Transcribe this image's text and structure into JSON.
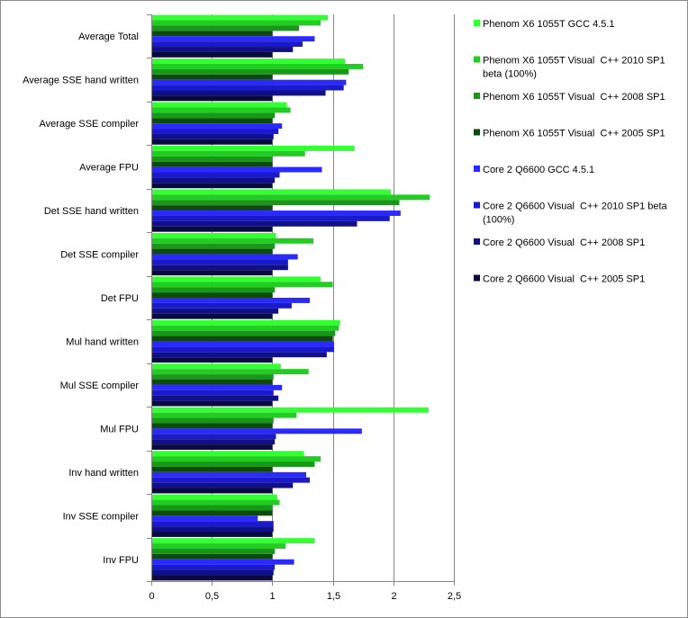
{
  "chart_data": {
    "type": "bar",
    "orientation": "horizontal",
    "title": "",
    "xlabel": "",
    "ylabel": "",
    "xlim": [
      0,
      2.5
    ],
    "xticks": [
      "0",
      "0,5",
      "1",
      "1,5",
      "2",
      "2,5"
    ],
    "grid": "vertical major gridlines",
    "legend_position": "right",
    "categories": [
      "Average Total",
      "Average SSE hand  written",
      "Average SSE compiler",
      "Average FPU",
      "Det SSE hand  written",
      "Det SSE compiler",
      "Det FPU",
      "Mul hand  written",
      "Mul SSE compiler",
      "Mul FPU",
      "Inv hand  written",
      "Inv SSE compiler",
      "Inv FPU"
    ],
    "series": [
      {
        "name": "Phenom X6 1055T GCC 4.5.1",
        "color": "#33ff33",
        "values": [
          1.46,
          1.6,
          1.12,
          1.68,
          1.98,
          1.03,
          1.4,
          1.56,
          1.07,
          2.29,
          1.26,
          1.04,
          1.35
        ]
      },
      {
        "name": "Phenom X6 1055T Visual  C++ 2010 SP1 beta (100%)",
        "color": "#22cc22",
        "values": [
          1.4,
          1.75,
          1.15,
          1.27,
          2.3,
          1.34,
          1.5,
          1.55,
          1.3,
          1.2,
          1.4,
          1.06,
          1.11
        ]
      },
      {
        "name": "Phenom X6 1055T Visual  C++ 2008 SP1",
        "color": "#169916",
        "values": [
          1.22,
          1.63,
          1.02,
          1.0,
          2.05,
          1.02,
          1.02,
          1.52,
          1.01,
          1.01,
          1.35,
          1.0,
          1.02
        ]
      },
      {
        "name": "Phenom X6 1055T Visual  C++ 2005 SP1",
        "color": "#0d4a0d",
        "values": [
          1.0,
          1.0,
          1.0,
          1.0,
          1.0,
          1.0,
          1.0,
          1.5,
          1.0,
          1.0,
          1.0,
          1.0,
          1.0
        ]
      },
      {
        "name": "Core 2 Q6600 GCC 4.5.1",
        "color": "#2a2aff",
        "values": [
          1.35,
          1.61,
          1.08,
          1.41,
          2.06,
          1.21,
          1.31,
          1.51,
          1.08,
          1.74,
          1.28,
          0.88,
          1.18
        ]
      },
      {
        "name": "Core 2 Q6600 Visual  C++ 2010 SP1 beta (100%)",
        "color": "#1a1acc",
        "values": [
          1.25,
          1.59,
          1.05,
          1.06,
          1.97,
          1.13,
          1.16,
          1.51,
          1.01,
          1.03,
          1.31,
          1.01,
          1.02
        ]
      },
      {
        "name": "Core 2 Q6600 Visual  C++ 2008 SP1",
        "color": "#10108a",
        "values": [
          1.17,
          1.44,
          1.01,
          1.02,
          1.7,
          1.13,
          1.05,
          1.45,
          1.05,
          1.02,
          1.17,
          1.01,
          1.01
        ]
      },
      {
        "name": "Core 2 Q6600 Visual  C++ 2005 SP1",
        "color": "#0a0a40",
        "values": [
          1.0,
          1.0,
          1.0,
          1.0,
          1.0,
          1.0,
          1.0,
          1.0,
          1.0,
          1.0,
          1.0,
          1.0,
          1.0
        ]
      }
    ]
  }
}
